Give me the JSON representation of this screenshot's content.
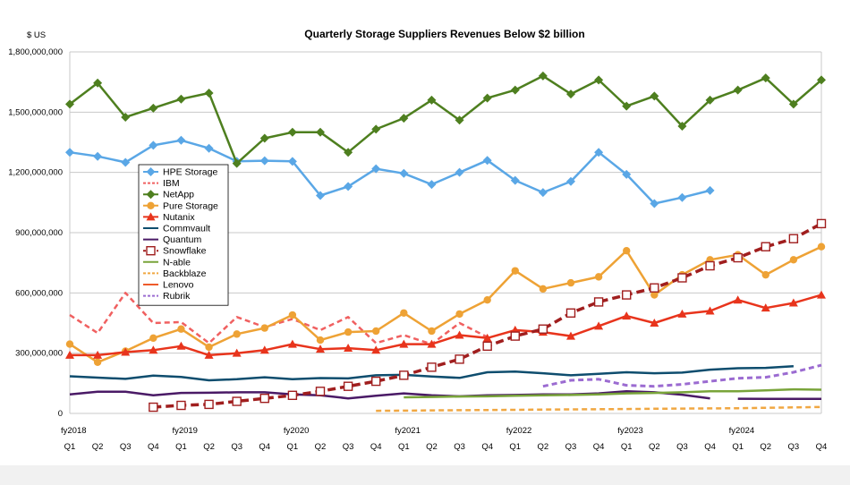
{
  "chart_data": {
    "type": "line",
    "title": "Quarterly Storage Suppliers Revenues Below $2 billion",
    "ylabel": "$ US",
    "ylim": [
      0,
      1800000000
    ],
    "yticks": [
      0,
      300000000,
      600000000,
      900000000,
      1200000000,
      1500000000,
      1800000000
    ],
    "ytick_labels": [
      "0",
      "300,000,000",
      "600,000,000",
      "900,000,000",
      "1,200,000,000",
      "1,500,000,000",
      "1,800,000,000"
    ],
    "quarter_labels": [
      "Q1",
      "Q2",
      "Q3",
      "Q4",
      "Q1",
      "Q2",
      "Q3",
      "Q4",
      "Q1",
      "Q2",
      "Q3",
      "Q4",
      "Q1",
      "Q2",
      "Q3",
      "Q4",
      "Q1",
      "Q2",
      "Q3",
      "Q4",
      "Q1",
      "Q2",
      "Q3",
      "Q4",
      "Q1",
      "Q2",
      "Q3",
      "Q4"
    ],
    "year_labels": [
      {
        "label": "fy2018",
        "index": 0
      },
      {
        "label": "fy2019",
        "index": 4
      },
      {
        "label": "fy2020",
        "index": 8
      },
      {
        "label": "fy2021",
        "index": 12
      },
      {
        "label": "fy2022",
        "index": 16
      },
      {
        "label": "fy2023",
        "index": 20
      },
      {
        "label": "fy2024",
        "index": 24
      }
    ],
    "legend_position": "left",
    "grid": "horizontal",
    "series": [
      {
        "name": "HPE Storage",
        "color": "#5aa7e6",
        "style": "solid",
        "marker": "diamond",
        "values": [
          1300000000,
          1280000000,
          1250000000,
          1335000000,
          1360000000,
          1320000000,
          1255000000,
          1258000000,
          1255000000,
          1085000000,
          1130000000,
          1218000000,
          1195000000,
          1140000000,
          1200000000,
          1260000000,
          1160000000,
          1100000000,
          1155000000,
          1300000000,
          1190000000,
          1045000000,
          1075000000,
          1110000000,
          null,
          null,
          null,
          null
        ]
      },
      {
        "name": "IBM",
        "color": "#f06060",
        "style": "dash",
        "marker": "none",
        "values": [
          490000000,
          400000000,
          600000000,
          450000000,
          455000000,
          350000000,
          480000000,
          430000000,
          470000000,
          415000000,
          480000000,
          350000000,
          390000000,
          345000000,
          450000000,
          380000000,
          null,
          null,
          null,
          null,
          null,
          null,
          null,
          null,
          null,
          null,
          null,
          null
        ]
      },
      {
        "name": "NetApp",
        "color": "#4e7f1f",
        "style": "solid",
        "marker": "diamond",
        "values": [
          1540000000,
          1645000000,
          1475000000,
          1520000000,
          1565000000,
          1595000000,
          1245000000,
          1370000000,
          1400000000,
          1400000000,
          1300000000,
          1415000000,
          1470000000,
          1560000000,
          1460000000,
          1570000000,
          1610000000,
          1680000000,
          1590000000,
          1660000000,
          1530000000,
          1580000000,
          1430000000,
          1560000000,
          1610000000,
          1670000000,
          1540000000,
          1660000000
        ]
      },
      {
        "name": "Pure Storage",
        "color": "#eea235",
        "style": "solid",
        "marker": "circle",
        "values": [
          345000000,
          255000000,
          310000000,
          375000000,
          420000000,
          330000000,
          395000000,
          425000000,
          490000000,
          365000000,
          405000000,
          410000000,
          500000000,
          410000000,
          495000000,
          565000000,
          710000000,
          620000000,
          650000000,
          680000000,
          810000000,
          590000000,
          690000000,
          765000000,
          790000000,
          690000000,
          765000000,
          830000000
        ]
      },
      {
        "name": "Nutanix",
        "color": "#e8341c",
        "style": "solid",
        "marker": "triangle",
        "values": [
          290000000,
          290000000,
          305000000,
          315000000,
          335000000,
          290000000,
          300000000,
          315000000,
          345000000,
          320000000,
          325000000,
          315000000,
          345000000,
          345000000,
          390000000,
          375000000,
          415000000,
          405000000,
          385000000,
          435000000,
          485000000,
          450000000,
          495000000,
          510000000,
          565000000,
          525000000,
          550000000,
          590000000
        ]
      },
      {
        "name": "Commvault",
        "color": "#0e4d6e",
        "style": "solid",
        "marker": "none",
        "values": [
          185000000,
          178000000,
          172000000,
          188000000,
          182000000,
          165000000,
          170000000,
          180000000,
          170000000,
          176000000,
          174000000,
          190000000,
          192000000,
          184000000,
          177000000,
          205000000,
          208000000,
          200000000,
          190000000,
          197000000,
          205000000,
          200000000,
          203000000,
          218000000,
          225000000,
          227000000,
          235000000,
          null
        ]
      },
      {
        "name": "Quantum",
        "color": "#4a1a66",
        "style": "solid",
        "marker": "none",
        "values": [
          95000000,
          108000000,
          108000000,
          90000000,
          102000000,
          103000000,
          105000000,
          105000000,
          95000000,
          90000000,
          75000000,
          88000000,
          100000000,
          90000000,
          85000000,
          90000000,
          92000000,
          95000000,
          95000000,
          100000000,
          110000000,
          105000000,
          93000000,
          75000000,
          null,
          null,
          null,
          null
        ]
      },
      {
        "name": "Quantum",
        "color": "#4a1a66",
        "style": "solid",
        "marker": "none",
        "values": [
          null,
          null,
          null,
          null,
          null,
          null,
          null,
          null,
          null,
          null,
          null,
          null,
          null,
          null,
          null,
          null,
          null,
          null,
          null,
          null,
          null,
          null,
          null,
          null,
          73000000,
          72000000,
          72000000,
          72000000
        ]
      },
      {
        "name": "Snowflake",
        "color": "#a01e1e",
        "style": "dash",
        "marker": "square",
        "values": [
          null,
          null,
          null,
          31000000,
          40000000,
          45000000,
          60000000,
          75000000,
          90000000,
          110000000,
          135000000,
          160000000,
          190000000,
          230000000,
          270000000,
          335000000,
          385000000,
          420000000,
          500000000,
          555000000,
          590000000,
          625000000,
          675000000,
          735000000,
          775000000,
          830000000,
          870000000,
          945000000
        ]
      },
      {
        "name": "N-able",
        "color": "#79a43a",
        "style": "solid",
        "marker": "none",
        "values": [
          null,
          null,
          null,
          null,
          null,
          null,
          null,
          null,
          null,
          null,
          null,
          null,
          80000000,
          82000000,
          84000000,
          85000000,
          88000000,
          90000000,
          92000000,
          95000000,
          100000000,
          102000000,
          105000000,
          110000000,
          110000000,
          115000000,
          120000000,
          118000000
        ]
      },
      {
        "name": "Backblaze",
        "color": "#f0a742",
        "style": "dash",
        "marker": "none",
        "values": [
          null,
          null,
          null,
          null,
          null,
          null,
          null,
          null,
          null,
          null,
          null,
          13000000,
          14000000,
          15000000,
          16000000,
          17000000,
          18000000,
          19000000,
          20000000,
          21000000,
          22000000,
          23000000,
          24000000,
          25000000,
          26000000,
          28000000,
          30000000,
          32000000
        ]
      },
      {
        "name": "Lenovo",
        "color": "#ee5a2a",
        "style": "solid",
        "marker": "none",
        "values": [
          null,
          null,
          null,
          null,
          null,
          null,
          null,
          null,
          null,
          null,
          null,
          null,
          null,
          null,
          null,
          null,
          null,
          null,
          null,
          null,
          null,
          null,
          null,
          null,
          null,
          null,
          null,
          null
        ]
      },
      {
        "name": "Rubrik",
        "color": "#9b6bd1",
        "style": "dash",
        "marker": "none",
        "values": [
          null,
          null,
          null,
          null,
          null,
          null,
          null,
          null,
          null,
          null,
          null,
          null,
          null,
          null,
          null,
          null,
          null,
          135000000,
          165000000,
          170000000,
          140000000,
          135000000,
          145000000,
          160000000,
          175000000,
          180000000,
          205000000,
          240000000
        ]
      }
    ]
  }
}
